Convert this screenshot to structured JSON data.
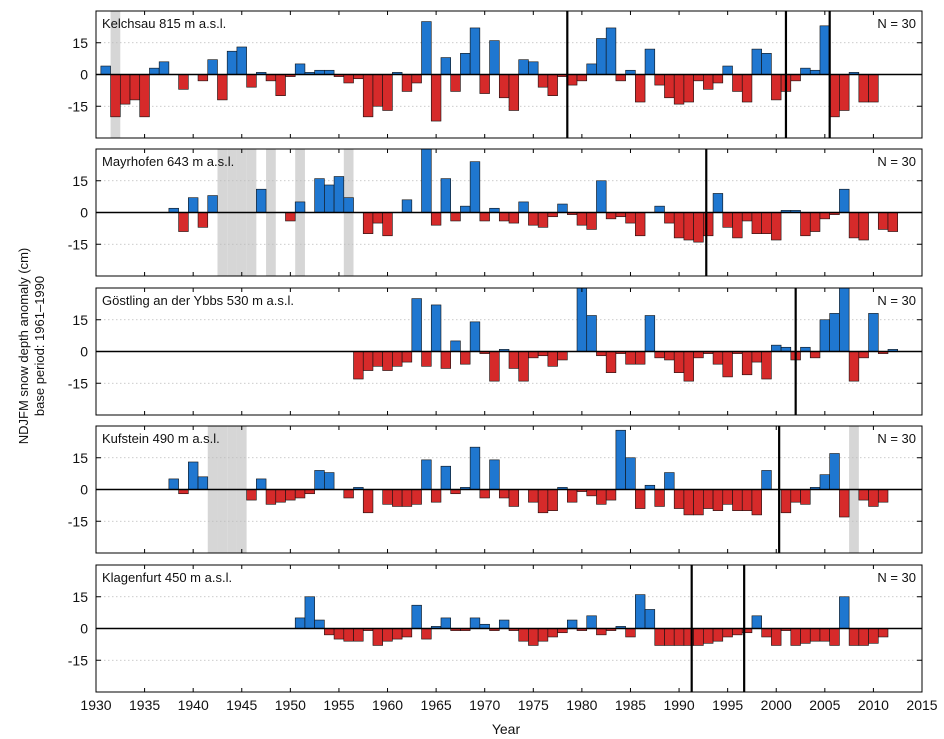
{
  "figure": {
    "ylabel_line1": "NDJFM snow depth anomaly (cm)",
    "ylabel_line2": "base period: 1961–1990",
    "xlabel": "Year",
    "x_ticks": [
      1930,
      1935,
      1940,
      1945,
      1950,
      1955,
      1960,
      1965,
      1970,
      1975,
      1980,
      1985,
      1990,
      1995,
      2000,
      2005,
      2010,
      2015
    ],
    "y_ticks": [
      15,
      0,
      -15
    ],
    "colors": {
      "positive": "#1f77d0",
      "negative": "#d62a2a",
      "gap": "#d6d6d6",
      "grid": "#bbbbbb"
    }
  },
  "chart_data": [
    {
      "type": "bar",
      "title": "Kelchsau 815 m a.s.l.",
      "n_label": "N = 30",
      "ylim": [
        -30,
        30
      ],
      "x_range": [
        1930,
        2015
      ],
      "start_year": 1931,
      "values": [
        4,
        -20,
        -14,
        -12,
        -20,
        3,
        6,
        0,
        -7,
        0,
        -3,
        7,
        -12,
        11,
        13,
        -6,
        1,
        -3,
        -10,
        -1,
        5,
        1,
        2,
        2,
        -1,
        -4,
        -2,
        -20,
        -15,
        -17,
        1,
        -8,
        -4,
        25,
        -22,
        8,
        -8,
        10,
        22,
        -9,
        16,
        -11,
        -17,
        7,
        6,
        -6,
        -10,
        -1,
        -5,
        -3,
        5,
        17,
        22,
        -3,
        2,
        -13,
        12,
        -5,
        -11,
        -14,
        -13,
        -3,
        -7,
        -4,
        4,
        -8,
        -13,
        12,
        10,
        -12,
        -8,
        -3,
        3,
        2,
        23,
        -20,
        -17,
        1,
        -13,
        -13
      ],
      "gap_years": [
        1932
      ],
      "vertical_lines": [
        1978.5,
        2001,
        2005.5
      ]
    },
    {
      "type": "bar",
      "title": "Mayrhofen 643 m a.s.l.",
      "n_label": "N = 30",
      "ylim": [
        -30,
        30
      ],
      "x_range": [
        1930,
        2015
      ],
      "start_year": 1931,
      "values": [
        0,
        0,
        0,
        0,
        0,
        0,
        0,
        2,
        -9,
        7,
        -7,
        8,
        0,
        0,
        0,
        0,
        11,
        0,
        0,
        -4,
        5,
        0,
        16,
        13,
        17,
        7,
        0,
        -10,
        -5,
        -11,
        0,
        6,
        0,
        30,
        -6,
        16,
        -4,
        3,
        24,
        -4,
        2,
        -4,
        -5,
        5,
        -6,
        -7,
        -2,
        4,
        -1,
        -6,
        -8,
        15,
        -3,
        -2,
        -5,
        -11,
        0,
        3,
        -5,
        -12,
        -13,
        -14,
        -11,
        9,
        -7,
        -12,
        -4,
        -10,
        -10,
        -13,
        1,
        1,
        -11,
        -9,
        -3,
        -1,
        11,
        -12,
        -13,
        0,
        -8,
        -9
      ],
      "gap_years": [
        1943,
        1944,
        1945,
        1946,
        1948,
        1951,
        1956
      ],
      "vertical_lines": [
        1992.8
      ]
    },
    {
      "type": "bar",
      "title": "Göstling an der Ybbs 530 m a.s.l.",
      "n_label": "N = 30",
      "ylim": [
        -30,
        30
      ],
      "x_range": [
        1930,
        2015
      ],
      "start_year": 1931,
      "values": [
        0,
        0,
        0,
        0,
        0,
        0,
        0,
        0,
        0,
        0,
        0,
        0,
        0,
        0,
        0,
        0,
        0,
        0,
        0,
        0,
        0,
        0,
        0,
        0,
        0,
        0,
        -13,
        -9,
        -7,
        -9,
        -7,
        -5,
        25,
        -7,
        22,
        -8,
        5,
        -6,
        14,
        -1,
        -14,
        1,
        -8,
        -14,
        -3,
        -2,
        -7,
        -4,
        0,
        30,
        17,
        -2,
        -10,
        -1,
        -6,
        -6,
        17,
        -3,
        -4,
        -10,
        -14,
        -3,
        -1,
        -6,
        -12,
        -1,
        -11,
        -5,
        -13,
        3,
        2,
        -4,
        2,
        -3,
        15,
        18,
        30,
        -14,
        -3,
        18,
        -1,
        1
      ],
      "gap_years": [],
      "vertical_lines": [
        2002
      ]
    },
    {
      "type": "bar",
      "title": "Kufstein 490 m a.s.l.",
      "n_label": "N = 30",
      "ylim": [
        -30,
        30
      ],
      "x_range": [
        1930,
        2015
      ],
      "start_year": 1931,
      "values": [
        0,
        0,
        0,
        0,
        0,
        0,
        0,
        5,
        -2,
        13,
        6,
        0,
        0,
        0,
        0,
        -5,
        5,
        -7,
        -6,
        -5,
        -4,
        -2,
        9,
        8,
        0,
        -4,
        1,
        -11,
        0,
        -7,
        -8,
        -8,
        -7,
        14,
        -6,
        11,
        -2,
        1,
        20,
        -4,
        14,
        -4,
        -8,
        0,
        -6,
        -11,
        -10,
        1,
        -6,
        -1,
        -3,
        -7,
        -5,
        28,
        15,
        -9,
        2,
        -8,
        8,
        -9,
        -12,
        -12,
        -9,
        -10,
        -7,
        -10,
        -10,
        -12,
        9,
        0,
        -11,
        -6,
        -7,
        1,
        7,
        17,
        -13,
        0,
        -5,
        -8,
        -6
      ],
      "gap_years": [
        1942,
        1943,
        1944,
        1945,
        2008
      ],
      "vertical_lines": [
        2000.3
      ]
    },
    {
      "type": "bar",
      "title": "Klagenfurt 450 m a.s.l.",
      "n_label": "N = 30",
      "ylim": [
        -30,
        30
      ],
      "x_range": [
        1930,
        2015
      ],
      "start_year": 1931,
      "values": [
        0,
        0,
        0,
        0,
        0,
        0,
        0,
        0,
        0,
        0,
        0,
        0,
        0,
        0,
        0,
        0,
        0,
        0,
        0,
        0,
        5,
        15,
        4,
        -3,
        -5,
        -6,
        -6,
        -1,
        -8,
        -6,
        -5,
        -4,
        11,
        -5,
        1,
        5,
        -1,
        -1,
        5,
        2,
        -1,
        4,
        -1,
        -6,
        -8,
        -6,
        -4,
        -2,
        4,
        -1,
        6,
        -3,
        -1,
        1,
        -4,
        16,
        9,
        -8,
        -8,
        -8,
        -8,
        -8,
        -7,
        -6,
        -4,
        -3,
        -2,
        6,
        -4,
        -8,
        -1,
        -8,
        -7,
        -6,
        -6,
        -8,
        15,
        -8,
        -8,
        -7,
        -4
      ],
      "gap_years": [],
      "vertical_lines": [
        1991.3,
        1996.7
      ]
    }
  ]
}
